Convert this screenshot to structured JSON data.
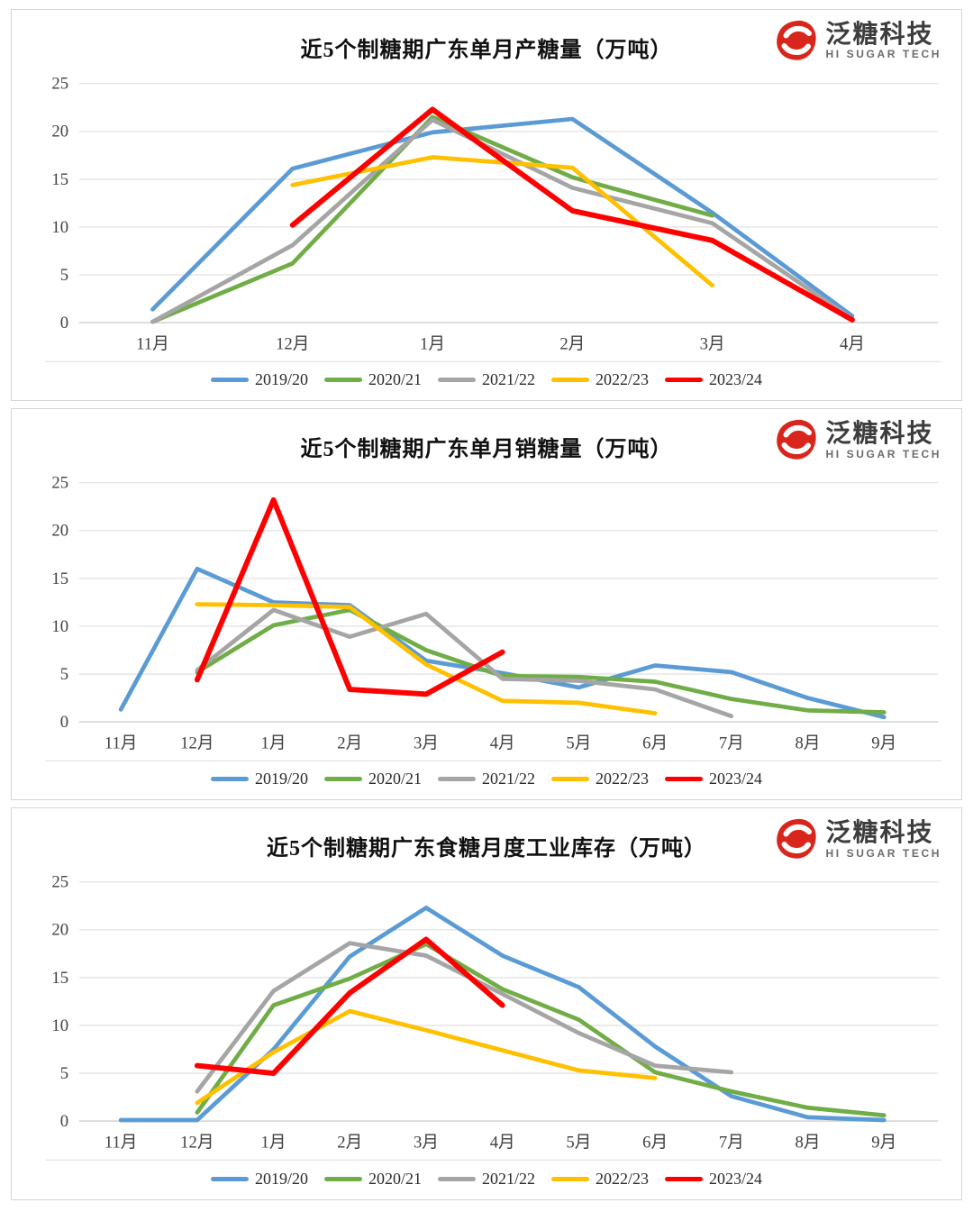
{
  "logo": {
    "zh": "泛糖科技",
    "en": "HI SUGAR TECH",
    "brand_red": "#D8261C"
  },
  "axis": {
    "tick_color": "#3f3f3f",
    "gridline_color": "#e4e4e4",
    "zeroline_color": "#cfcfcf"
  },
  "chart_data": [
    {
      "type": "line",
      "title": "近5个制糖期广东单月产糖量（万吨）",
      "ylabel": "",
      "xlabel": "",
      "ylim": [
        0,
        25
      ],
      "y_ticks": [
        0,
        5,
        10,
        15,
        20,
        25
      ],
      "grid": "horizontal",
      "legend_position": "bottom",
      "categories": [
        "11月",
        "12月",
        "1月",
        "2月",
        "3月",
        "4月"
      ],
      "series": [
        {
          "name": "2019/20",
          "color": "#5B9BD5",
          "values": [
            1.4,
            16.1,
            19.9,
            21.3,
            11.5,
            0.7
          ]
        },
        {
          "name": "2020/21",
          "color": "#70AD47",
          "values": [
            0.1,
            6.2,
            21.5,
            15.2,
            11.2,
            null
          ]
        },
        {
          "name": "2021/22",
          "color": "#A5A5A5",
          "values": [
            0.1,
            8.1,
            21.2,
            14.1,
            10.4,
            0.4
          ]
        },
        {
          "name": "2022/23",
          "color": "#FFC000",
          "values": [
            null,
            14.4,
            17.3,
            16.2,
            3.9,
            null
          ]
        },
        {
          "name": "2023/24",
          "color": "#FF0000",
          "values": [
            null,
            10.2,
            22.3,
            11.7,
            8.6,
            0.3
          ]
        }
      ]
    },
    {
      "type": "line",
      "title": "近5个制糖期广东单月销糖量（万吨）",
      "ylabel": "",
      "xlabel": "",
      "ylim": [
        0,
        25
      ],
      "y_ticks": [
        0,
        5,
        10,
        15,
        20,
        25
      ],
      "grid": "horizontal",
      "legend_position": "bottom",
      "categories": [
        "11月",
        "12月",
        "1月",
        "2月",
        "3月",
        "4月",
        "5月",
        "6月",
        "7月",
        "8月",
        "9月"
      ],
      "series": [
        {
          "name": "2019/20",
          "color": "#5B9BD5",
          "values": [
            1.3,
            16.0,
            12.5,
            12.2,
            6.4,
            5.1,
            3.6,
            5.9,
            5.2,
            2.5,
            0.5
          ]
        },
        {
          "name": "2020/21",
          "color": "#70AD47",
          "values": [
            null,
            5.2,
            10.1,
            11.7,
            7.5,
            4.8,
            4.7,
            4.2,
            2.4,
            1.2,
            1.0
          ]
        },
        {
          "name": "2021/22",
          "color": "#A5A5A5",
          "values": [
            null,
            5.4,
            11.7,
            8.9,
            11.3,
            4.5,
            4.3,
            3.4,
            0.6,
            null,
            null
          ]
        },
        {
          "name": "2022/23",
          "color": "#FFC000",
          "values": [
            null,
            12.3,
            12.2,
            12.0,
            6.0,
            2.2,
            2.0,
            0.9,
            null,
            null,
            null
          ]
        },
        {
          "name": "2023/24",
          "color": "#FF0000",
          "values": [
            null,
            4.4,
            23.2,
            3.4,
            2.9,
            7.3,
            null,
            null,
            null,
            null,
            null
          ]
        }
      ]
    },
    {
      "type": "line",
      "title": "近5个制糖期广东食糖月度工业库存（万吨）",
      "ylabel": "",
      "xlabel": "",
      "ylim": [
        0,
        25
      ],
      "y_ticks": [
        0,
        5,
        10,
        15,
        20,
        25
      ],
      "grid": "horizontal",
      "legend_position": "bottom",
      "categories": [
        "11月",
        "12月",
        "1月",
        "2月",
        "3月",
        "4月",
        "5月",
        "6月",
        "7月",
        "8月",
        "9月"
      ],
      "series": [
        {
          "name": "2019/20",
          "color": "#5B9BD5",
          "values": [
            0.1,
            0.1,
            7.5,
            17.2,
            22.3,
            17.3,
            14.0,
            7.8,
            2.6,
            0.4,
            0.1
          ]
        },
        {
          "name": "2020/21",
          "color": "#70AD47",
          "values": [
            null,
            0.9,
            12.1,
            14.9,
            18.5,
            13.8,
            10.6,
            5.1,
            3.1,
            1.4,
            0.6
          ]
        },
        {
          "name": "2021/22",
          "color": "#A5A5A5",
          "values": [
            null,
            3.1,
            13.6,
            18.6,
            17.3,
            13.3,
            9.2,
            5.8,
            5.1,
            null,
            null
          ]
        },
        {
          "name": "2022/23",
          "color": "#FFC000",
          "values": [
            null,
            1.9,
            7.2,
            11.5,
            9.5,
            7.4,
            5.3,
            4.5,
            null,
            null,
            null
          ]
        },
        {
          "name": "2023/24",
          "color": "#FF0000",
          "values": [
            null,
            5.8,
            5.0,
            13.4,
            19.0,
            12.1,
            null,
            null,
            null,
            null,
            null
          ]
        }
      ]
    }
  ]
}
